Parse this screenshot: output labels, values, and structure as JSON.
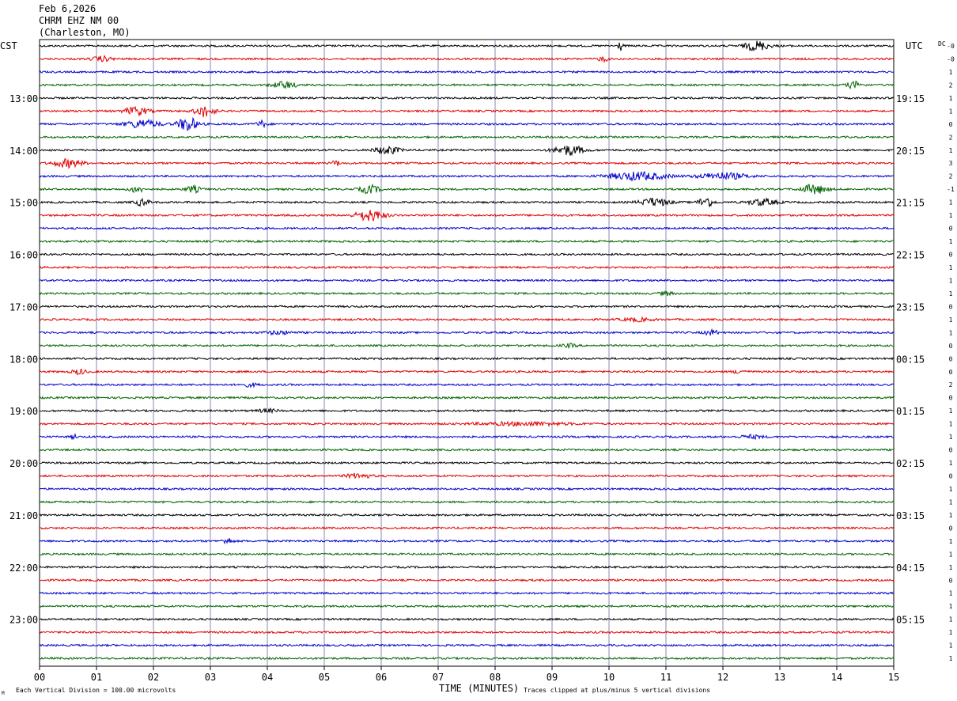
{
  "header": {
    "date": "Feb 6,2026",
    "station": "CHRM EHZ NM 00",
    "location": "(Charleston, MO)"
  },
  "labels": {
    "left_tz": "CST",
    "right_tz": "UTC",
    "dc": "DC",
    "x_axis": "TIME (MINUTES)",
    "scale_note": "Each Vertical Division =  100.00 microvolts",
    "clip_note": "Traces clipped at plus/minus 5 vertical divisions"
  },
  "colors": {
    "trace_cycle": [
      "#000000",
      "#e00000",
      "#0000cc",
      "#006400"
    ],
    "grid": "#8a8ab0"
  },
  "chart_data": {
    "type": "line",
    "subtype": "helicorder",
    "x_ticks": [
      "00",
      "01",
      "02",
      "03",
      "04",
      "05",
      "06",
      "07",
      "08",
      "09",
      "10",
      "11",
      "12",
      "13",
      "14",
      "15"
    ],
    "x_range": [
      0,
      15
    ],
    "rows_per_hour": 4,
    "rows": 48,
    "left_hour_labels": [
      "13:00",
      "14:00",
      "15:00",
      "16:00",
      "17:00",
      "18:00",
      "19:00",
      "20:00",
      "21:00",
      "22:00",
      "23:00"
    ],
    "right_hour_labels": [
      "19:15",
      "20:15",
      "21:15",
      "22:15",
      "23:15",
      "00:15",
      "01:15",
      "02:15",
      "03:15",
      "04:15",
      "05:15"
    ],
    "hour_label_first_row": 4,
    "dc_offsets": [
      "-0",
      "-0",
      "1",
      "2",
      "1",
      "1",
      "0",
      "2",
      "1",
      "3",
      "2",
      "-1",
      "1",
      "1",
      "0",
      "1",
      "0",
      "1",
      "1",
      "1",
      "0",
      "1",
      "1",
      "0",
      "0",
      "0",
      "2",
      "0",
      "1",
      "1",
      "1",
      "0",
      "1",
      "0",
      "1",
      "1",
      "1",
      "0",
      "1",
      "1",
      "1",
      "0",
      "1",
      "1",
      "1",
      "1",
      "1",
      "1"
    ],
    "noise_amplitude": 1.2,
    "events": [
      {
        "row": 0,
        "center": 10.2,
        "width": 0.1,
        "amp": 6
      },
      {
        "row": 0,
        "center": 12.6,
        "width": 0.5,
        "amp": 6
      },
      {
        "row": 1,
        "center": 1.1,
        "width": 0.4,
        "amp": 3
      },
      {
        "row": 1,
        "center": 9.9,
        "width": 0.2,
        "amp": 3
      },
      {
        "row": 3,
        "center": 4.3,
        "width": 0.5,
        "amp": 4
      },
      {
        "row": 3,
        "center": 14.3,
        "width": 0.3,
        "amp": 4
      },
      {
        "row": 5,
        "center": 1.7,
        "width": 0.5,
        "amp": 5
      },
      {
        "row": 5,
        "center": 2.9,
        "width": 0.4,
        "amp": 7
      },
      {
        "row": 6,
        "center": 1.8,
        "width": 0.7,
        "amp": 5
      },
      {
        "row": 6,
        "center": 2.6,
        "width": 0.4,
        "amp": 9
      },
      {
        "row": 6,
        "center": 3.9,
        "width": 0.2,
        "amp": 4
      },
      {
        "row": 8,
        "center": 6.1,
        "width": 0.5,
        "amp": 5
      },
      {
        "row": 8,
        "center": 9.3,
        "width": 0.6,
        "amp": 6
      },
      {
        "row": 9,
        "center": 0.5,
        "width": 0.6,
        "amp": 5
      },
      {
        "row": 9,
        "center": 5.2,
        "width": 0.2,
        "amp": 3
      },
      {
        "row": 10,
        "center": 10.5,
        "width": 1.2,
        "amp": 5
      },
      {
        "row": 10,
        "center": 12.0,
        "width": 1.0,
        "amp": 4
      },
      {
        "row": 11,
        "center": 1.7,
        "width": 0.3,
        "amp": 4
      },
      {
        "row": 11,
        "center": 2.7,
        "width": 0.3,
        "amp": 4
      },
      {
        "row": 11,
        "center": 5.8,
        "width": 0.4,
        "amp": 5
      },
      {
        "row": 11,
        "center": 13.6,
        "width": 0.5,
        "amp": 6
      },
      {
        "row": 12,
        "center": 1.8,
        "width": 0.3,
        "amp": 4
      },
      {
        "row": 12,
        "center": 10.8,
        "width": 0.6,
        "amp": 5
      },
      {
        "row": 12,
        "center": 11.7,
        "width": 0.3,
        "amp": 7
      },
      {
        "row": 12,
        "center": 12.7,
        "width": 0.6,
        "amp": 4
      },
      {
        "row": 13,
        "center": 5.8,
        "width": 0.6,
        "amp": 7
      },
      {
        "row": 19,
        "center": 11.0,
        "width": 0.3,
        "amp": 2
      },
      {
        "row": 21,
        "center": 10.5,
        "width": 0.6,
        "amp": 2
      },
      {
        "row": 22,
        "center": 4.2,
        "width": 0.6,
        "amp": 2
      },
      {
        "row": 22,
        "center": 11.8,
        "width": 0.3,
        "amp": 3
      },
      {
        "row": 23,
        "center": 9.3,
        "width": 0.3,
        "amp": 2
      },
      {
        "row": 25,
        "center": 0.7,
        "width": 0.3,
        "amp": 3
      },
      {
        "row": 25,
        "center": 12.3,
        "width": 0.3,
        "amp": 2
      },
      {
        "row": 26,
        "center": 3.7,
        "width": 0.3,
        "amp": 2
      },
      {
        "row": 28,
        "center": 4.0,
        "width": 0.4,
        "amp": 2
      },
      {
        "row": 29,
        "center": 8.5,
        "width": 2.0,
        "amp": 2
      },
      {
        "row": 30,
        "center": 0.6,
        "width": 0.1,
        "amp": 4
      },
      {
        "row": 30,
        "center": 12.5,
        "width": 0.5,
        "amp": 2
      },
      {
        "row": 33,
        "center": 5.6,
        "width": 0.5,
        "amp": 3
      },
      {
        "row": 38,
        "center": 3.3,
        "width": 0.2,
        "amp": 4
      }
    ]
  }
}
